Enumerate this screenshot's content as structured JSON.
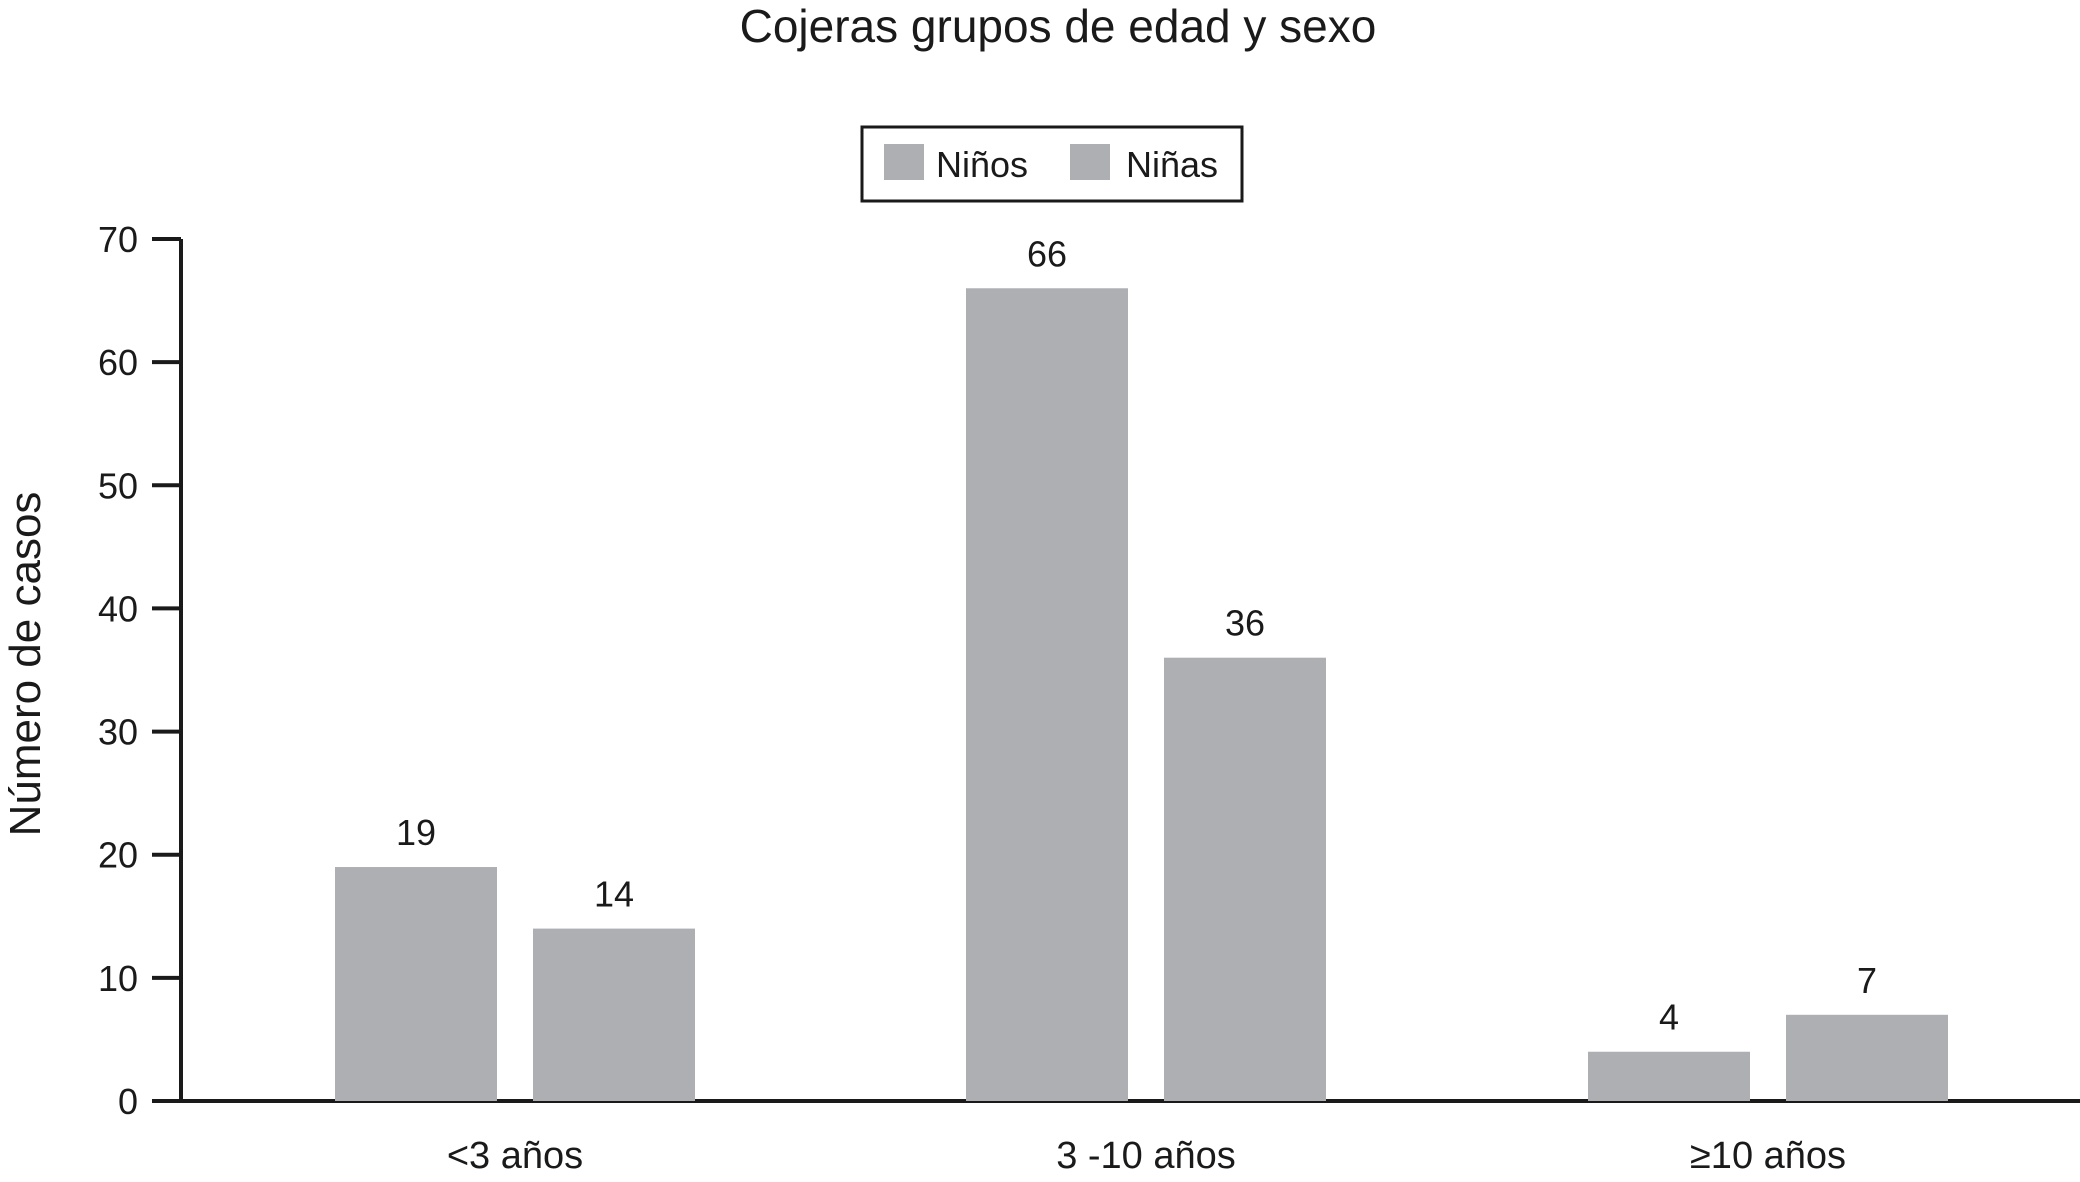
{
  "chart_data": {
    "type": "bar",
    "title": "Cojeras grupos de edad y sexo",
    "xlabel": "",
    "ylabel": "Número de casos",
    "categories": [
      "<3 años",
      "3 -10 años",
      "≥10 años"
    ],
    "series": [
      {
        "name": "Niños",
        "values": [
          19,
          66,
          4
        ],
        "color": "#aeafb2"
      },
      {
        "name": "Niñas",
        "values": [
          14,
          36,
          7
        ],
        "color": "#aeafb2"
      }
    ],
    "data_labels": [
      [
        "19",
        "66",
        "4"
      ],
      [
        "14",
        "36",
        "7"
      ]
    ],
    "ylim": [
      0,
      70
    ],
    "yticks": [
      0,
      10,
      20,
      30,
      40,
      50,
      60,
      70
    ],
    "grid": false,
    "legend_position": "top-center",
    "axis_color": "#1a1a1a"
  }
}
